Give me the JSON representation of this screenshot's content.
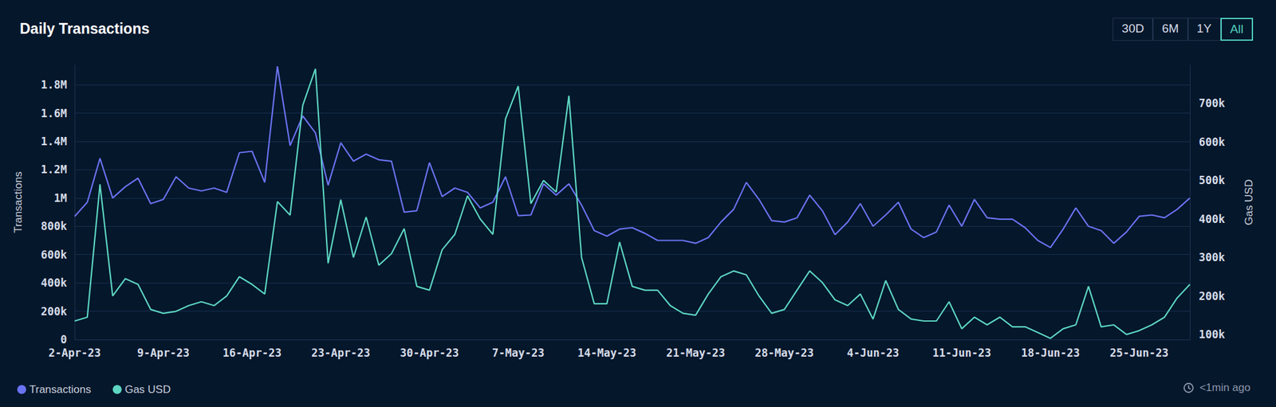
{
  "chart_data": {
    "type": "line",
    "title": "Daily Transactions",
    "y_label": "Transactions",
    "y2_label": "Gas USD",
    "buttons": [
      "30D",
      "6M",
      "1Y",
      "All"
    ],
    "selected": "All",
    "updated": "<1min ago",
    "categories": [
      "2-Apr-23",
      null,
      null,
      null,
      null,
      null,
      null,
      "9-Apr-23",
      null,
      null,
      null,
      null,
      null,
      null,
      "16-Apr-23",
      null,
      null,
      null,
      null,
      null,
      null,
      "23-Apr-23",
      null,
      null,
      null,
      null,
      null,
      null,
      "30-Apr-23",
      null,
      null,
      null,
      null,
      null,
      null,
      "7-May-23",
      null,
      null,
      null,
      null,
      null,
      null,
      "14-May-23",
      null,
      null,
      null,
      null,
      null,
      null,
      "21-May-23",
      null,
      null,
      null,
      null,
      null,
      null,
      "28-May-23",
      null,
      null,
      null,
      null,
      null,
      null,
      "4-Jun-23",
      null,
      null,
      null,
      null,
      null,
      null,
      "11-Jun-23",
      null,
      null,
      null,
      null,
      null,
      null,
      "18-Jun-23",
      null,
      null,
      null,
      null,
      null,
      null,
      "25-Jun-23",
      null,
      null,
      null,
      null
    ],
    "series": [
      {
        "name": "Transactions",
        "color": "#6a73f2",
        "values": [
          870000,
          970000,
          1280000,
          1000000,
          1080000,
          1140000,
          960000,
          990000,
          1150000,
          1070000,
          1050000,
          1070000,
          1040000,
          1320000,
          1330000,
          1110000,
          1930000,
          1370000,
          1580000,
          1460000,
          1090000,
          1390000,
          1260000,
          1310000,
          1270000,
          1260000,
          900000,
          910000,
          1250000,
          1010000,
          1070000,
          1040000,
          930000,
          970000,
          1150000,
          875000,
          880000,
          1100000,
          1020000,
          1100000,
          950000,
          770000,
          730000,
          780000,
          790000,
          750000,
          700000,
          700000,
          700000,
          680000,
          720000,
          830000,
          920000,
          1110000,
          990000,
          840000,
          830000,
          860000,
          1020000,
          910000,
          740000,
          830000,
          960000,
          800000,
          880000,
          970000,
          780000,
          720000,
          760000,
          950000,
          800000,
          990000,
          860000,
          850000,
          850000,
          790000,
          700000,
          650000,
          780000,
          930000,
          800000,
          770000,
          680000,
          760000,
          870000,
          880000,
          860000,
          920000,
          1000000
        ]
      },
      {
        "name": "Gas USD",
        "color": "#5dd6c2",
        "axis": "y2",
        "values": [
          135000,
          145000,
          490000,
          200000,
          245000,
          230000,
          165000,
          155000,
          160000,
          175000,
          185000,
          175000,
          200000,
          250000,
          230000,
          205000,
          445000,
          410000,
          695000,
          790000,
          285000,
          450000,
          300000,
          405000,
          280000,
          310000,
          375000,
          225000,
          215000,
          320000,
          360000,
          460000,
          400000,
          360000,
          660000,
          745000,
          440000,
          500000,
          470000,
          720000,
          300000,
          180000,
          180000,
          340000,
          225000,
          215000,
          215000,
          175000,
          155000,
          150000,
          205000,
          250000,
          265000,
          255000,
          200000,
          155000,
          165000,
          215000,
          265000,
          235000,
          190000,
          175000,
          205000,
          140000,
          240000,
          165000,
          140000,
          135000,
          135000,
          185000,
          115000,
          145000,
          125000,
          145000,
          120000,
          120000,
          105000,
          90000,
          115000,
          125000,
          225000,
          120000,
          125000,
          100000,
          110000,
          125000,
          145000,
          195000,
          230000
        ]
      }
    ],
    "ylim": [
      0,
      1940000
    ],
    "yticks": [
      0,
      {
        "value": 200000,
        "label": "200k"
      },
      {
        "value": 400000,
        "label": "400k"
      },
      {
        "value": 600000,
        "label": "600k"
      },
      {
        "value": 800000,
        "label": "800k"
      },
      {
        "value": 1000000,
        "label": "1M"
      },
      {
        "value": 1200000,
        "label": "1.2M"
      },
      {
        "value": 1400000,
        "label": "1.4M"
      },
      {
        "value": 1600000,
        "label": "1.6M"
      },
      {
        "value": 1800000,
        "label": "1.8M"
      }
    ],
    "y2lim": [
      87000,
      800000
    ],
    "y2ticks": [
      {
        "value": 100000,
        "label": "100k"
      },
      {
        "value": 200000,
        "label": "200k"
      },
      {
        "value": 300000,
        "label": "300k"
      },
      {
        "value": 400000,
        "label": "400k"
      },
      {
        "value": 500000,
        "label": "500k"
      },
      {
        "value": 600000,
        "label": "600k"
      },
      {
        "value": 700000,
        "label": "700k"
      }
    ],
    "grid": true,
    "legend": "bottom-left"
  }
}
